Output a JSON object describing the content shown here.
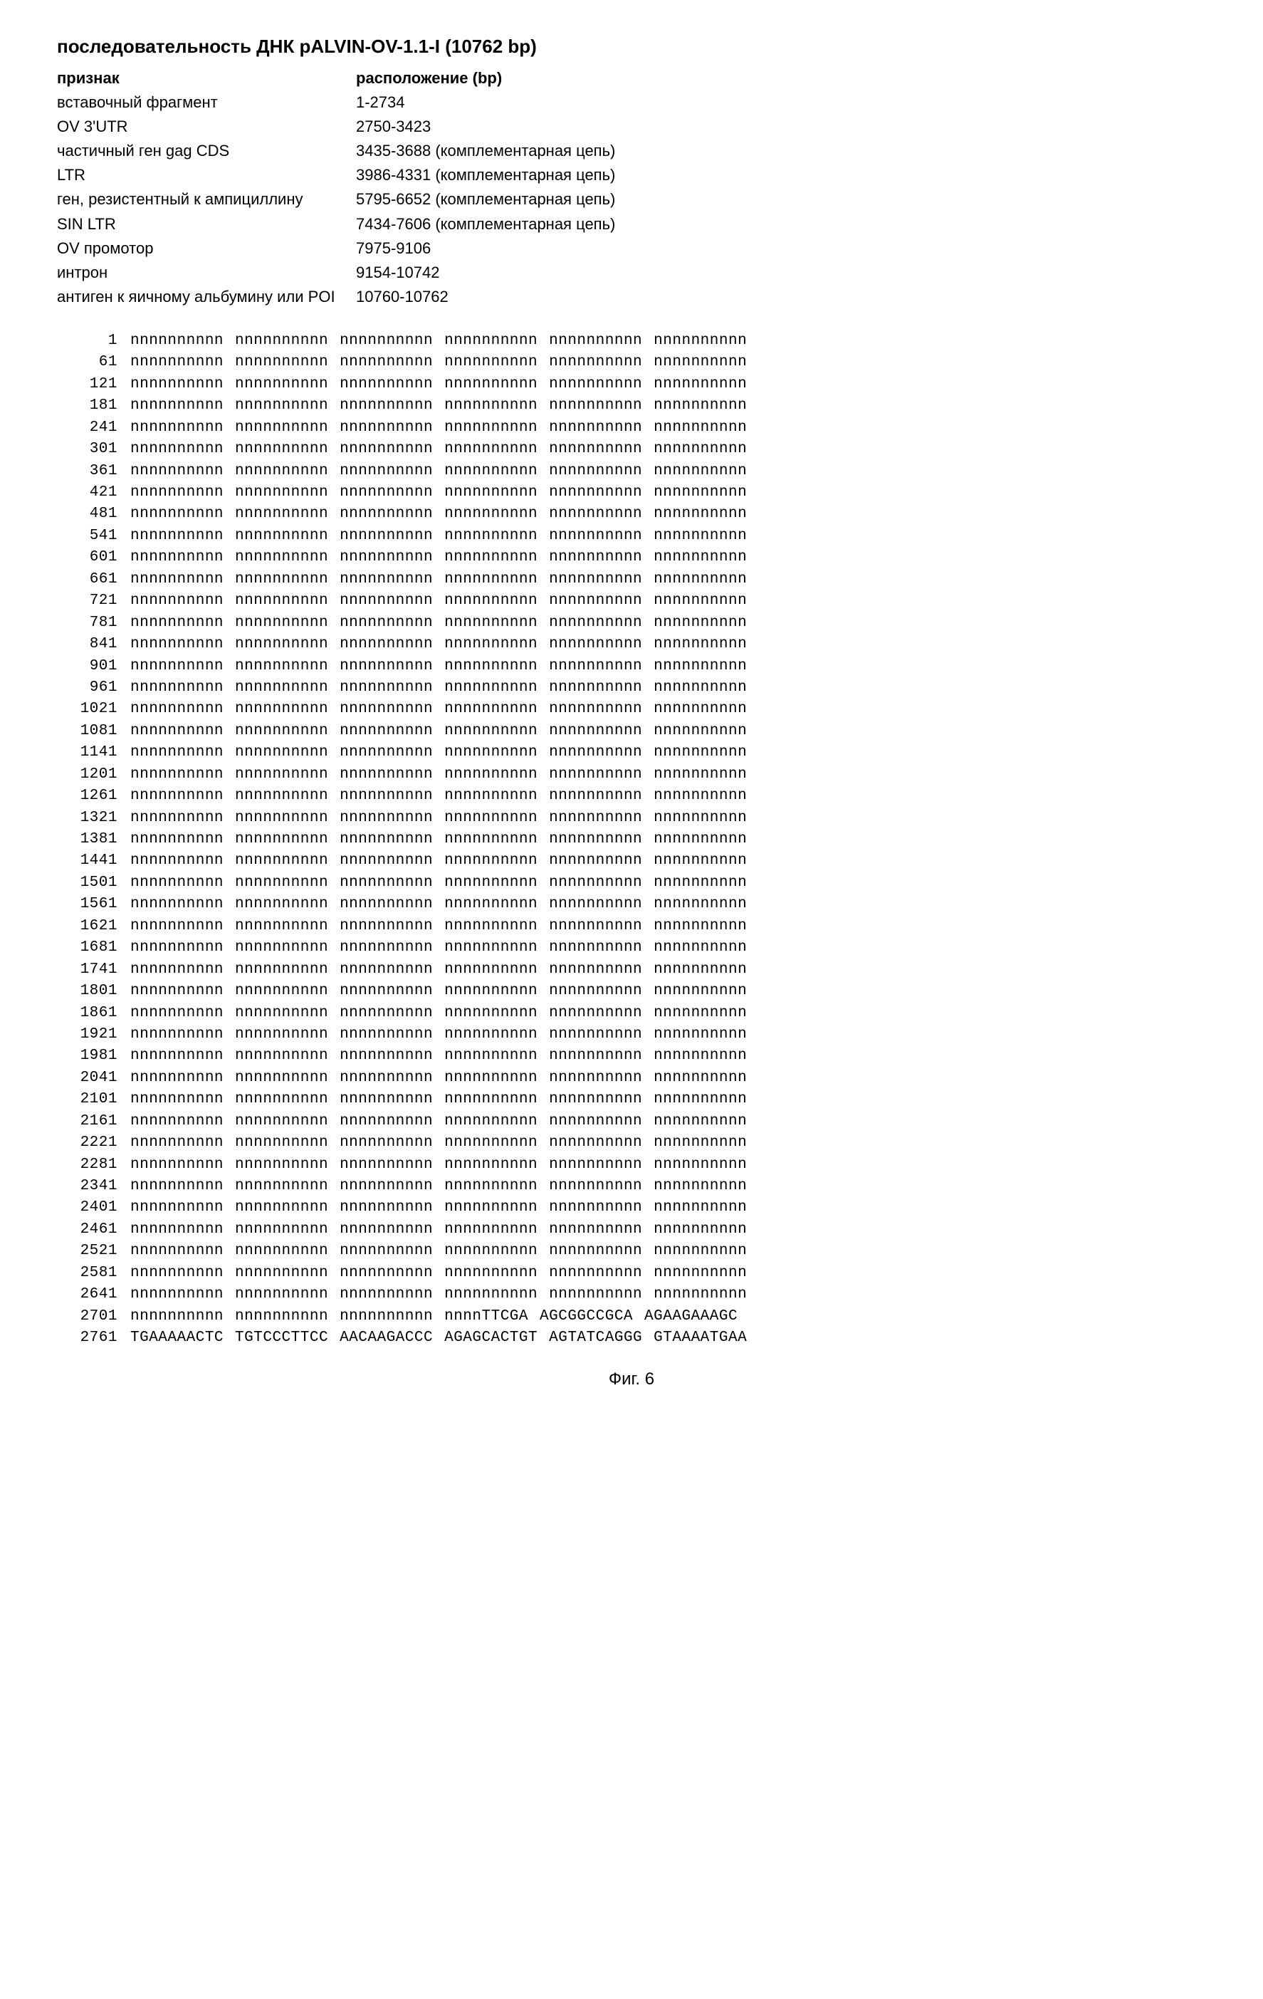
{
  "title": "последовательность ДНК pALVIN-OV-1.1-I (10762 bp)",
  "feature_header": {
    "label": "признак",
    "location": "расположение (bp)"
  },
  "features": [
    {
      "label": "вставочный фрагмент",
      "location": "1-2734"
    },
    {
      "label": "OV 3'UTR",
      "location": "2750-3423"
    },
    {
      "label": "частичный ген gag CDS",
      "location": "3435-3688 (комплементарная цепь)"
    },
    {
      "label": "LTR",
      "location": "3986-4331 (комплементарная цепь)"
    },
    {
      "label": "ген, резистентный к ампициллину",
      "location": "5795-6652 (комплементарная цепь)"
    },
    {
      "label": "SIN LTR",
      "location": "7434-7606 (комплементарная цепь)"
    },
    {
      "label": "OV промотор",
      "location": "7975-9106"
    },
    {
      "label": "интрон",
      "location": "9154-10742"
    },
    {
      "label": "антиген к яичному альбумину или POI",
      "location": "10760-10762"
    }
  ],
  "sequence": {
    "n_block": "nnnnnnnnnn",
    "full_n_positions": [
      1,
      61,
      121,
      181,
      241,
      301,
      361,
      421,
      481,
      541,
      601,
      661,
      721,
      781,
      841,
      901,
      961,
      1021,
      1081,
      1141,
      1201,
      1261,
      1321,
      1381,
      1441,
      1501,
      1561,
      1621,
      1681,
      1741,
      1801,
      1861,
      1921,
      1981,
      2041,
      2101,
      2161,
      2221,
      2281,
      2341,
      2401,
      2461,
      2521,
      2581,
      2641
    ],
    "rows_tail": [
      {
        "pos": 2701,
        "blocks": [
          "nnnnnnnnnn",
          "nnnnnnnnnn",
          "nnnnnnnnnn",
          "nnnnTTCGA",
          "AGCGGCCGCA",
          "AGAAGAAAGC"
        ]
      },
      {
        "pos": 2761,
        "blocks": [
          "TGAAAAACTC",
          "TGTCCCTTCC",
          "AACAAGACCC",
          "AGAGCACTGT",
          "AGTATCAGGG",
          "GTAAAATGAA"
        ]
      }
    ]
  },
  "figure_caption": "Фиг. 6"
}
